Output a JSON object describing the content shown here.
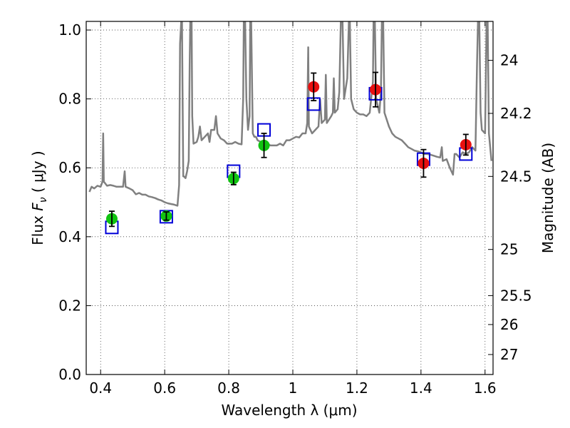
{
  "chart_data": {
    "type": "scatter",
    "xlabel": "Wavelength  λ (μm)",
    "ylabel": "Flux  F_ν  ( μJy )",
    "ylabel_parts": {
      "pre": "Flux  ",
      "var": "F",
      "sub": "ν",
      "post": "  ( μJy )"
    },
    "y2label": "Magnitude (AB)",
    "xlim": [
      0.355,
      1.625
    ],
    "ylim": [
      0.0,
      1.025
    ],
    "x_ticks": [
      {
        "value": 0.4,
        "label": "0.4"
      },
      {
        "value": 0.6,
        "label": "0.6"
      },
      {
        "value": 0.8,
        "label": "0.8"
      },
      {
        "value": 1.0,
        "label": "1"
      },
      {
        "value": 1.2,
        "label": "1.2"
      },
      {
        "value": 1.4,
        "label": "1.4"
      },
      {
        "value": 1.6,
        "label": "1.6"
      }
    ],
    "y_ticks": [
      {
        "value": 0.0,
        "label": "0.0"
      },
      {
        "value": 0.2,
        "label": "0.2"
      },
      {
        "value": 0.4,
        "label": "0.4"
      },
      {
        "value": 0.6,
        "label": "0.6"
      },
      {
        "value": 0.8,
        "label": "0.8"
      },
      {
        "value": 1.0,
        "label": "1.0"
      }
    ],
    "y2_ticks": [
      {
        "flux": 0.912,
        "label": "24"
      },
      {
        "flux": 0.758,
        "label": "24.2"
      },
      {
        "flux": 0.575,
        "label": "24.5"
      },
      {
        "flux": 0.363,
        "label": "25"
      },
      {
        "flux": 0.229,
        "label": "25.5"
      },
      {
        "flux": 0.145,
        "label": "26"
      },
      {
        "flux": 0.058,
        "label": "27"
      }
    ],
    "grid": true,
    "series": [
      {
        "kind": "spectrum",
        "color": "#808080",
        "points": [
          [
            0.365,
            0.53
          ],
          [
            0.372,
            0.545
          ],
          [
            0.38,
            0.54
          ],
          [
            0.39,
            0.548
          ],
          [
            0.4,
            0.545
          ],
          [
            0.406,
            0.56
          ],
          [
            0.408,
            0.7
          ],
          [
            0.41,
            0.56
          ],
          [
            0.42,
            0.548
          ],
          [
            0.43,
            0.55
          ],
          [
            0.44,
            0.548
          ],
          [
            0.45,
            0.545
          ],
          [
            0.46,
            0.545
          ],
          [
            0.47,
            0.545
          ],
          [
            0.475,
            0.59
          ],
          [
            0.478,
            0.545
          ],
          [
            0.49,
            0.54
          ],
          [
            0.5,
            0.535
          ],
          [
            0.51,
            0.523
          ],
          [
            0.52,
            0.527
          ],
          [
            0.53,
            0.522
          ],
          [
            0.54,
            0.522
          ],
          [
            0.55,
            0.517
          ],
          [
            0.56,
            0.515
          ],
          [
            0.57,
            0.512
          ],
          [
            0.58,
            0.508
          ],
          [
            0.59,
            0.505
          ],
          [
            0.6,
            0.5
          ],
          [
            0.61,
            0.497
          ],
          [
            0.62,
            0.495
          ],
          [
            0.63,
            0.493
          ],
          [
            0.64,
            0.49
          ],
          [
            0.645,
            0.55
          ],
          [
            0.648,
            0.96
          ],
          [
            0.652,
            1.03
          ],
          [
            0.654,
            1.03
          ],
          [
            0.656,
            0.8
          ],
          [
            0.658,
            0.575
          ],
          [
            0.66,
            0.575
          ],
          [
            0.665,
            0.57
          ],
          [
            0.67,
            0.59
          ],
          [
            0.675,
            0.62
          ],
          [
            0.678,
            0.9
          ],
          [
            0.68,
            1.03
          ],
          [
            0.684,
            1.03
          ],
          [
            0.686,
            0.75
          ],
          [
            0.69,
            0.67
          ],
          [
            0.7,
            0.675
          ],
          [
            0.705,
            0.69
          ],
          [
            0.71,
            0.72
          ],
          [
            0.715,
            0.68
          ],
          [
            0.725,
            0.69
          ],
          [
            0.735,
            0.7
          ],
          [
            0.74,
            0.675
          ],
          [
            0.745,
            0.71
          ],
          [
            0.755,
            0.71
          ],
          [
            0.76,
            0.75
          ],
          [
            0.765,
            0.7
          ],
          [
            0.775,
            0.685
          ],
          [
            0.785,
            0.68
          ],
          [
            0.795,
            0.67
          ],
          [
            0.8,
            0.67
          ],
          [
            0.81,
            0.67
          ],
          [
            0.82,
            0.675
          ],
          [
            0.83,
            0.67
          ],
          [
            0.84,
            0.668
          ],
          [
            0.845,
            0.8
          ],
          [
            0.847,
            1.03
          ],
          [
            0.851,
            1.03
          ],
          [
            0.855,
            0.8
          ],
          [
            0.86,
            0.71
          ],
          [
            0.865,
            0.75
          ],
          [
            0.867,
            1.03
          ],
          [
            0.87,
            1.03
          ],
          [
            0.872,
            0.9
          ],
          [
            0.875,
            0.7
          ],
          [
            0.88,
            0.69
          ],
          [
            0.885,
            0.69
          ],
          [
            0.89,
            0.68
          ],
          [
            0.9,
            0.675
          ],
          [
            0.91,
            0.67
          ],
          [
            0.92,
            0.67
          ],
          [
            0.93,
            0.665
          ],
          [
            0.95,
            0.665
          ],
          [
            0.96,
            0.67
          ],
          [
            0.97,
            0.665
          ],
          [
            0.98,
            0.68
          ],
          [
            0.99,
            0.68
          ],
          [
            1.0,
            0.685
          ],
          [
            1.01,
            0.69
          ],
          [
            1.02,
            0.688
          ],
          [
            1.03,
            0.7
          ],
          [
            1.04,
            0.7
          ],
          [
            1.045,
            0.73
          ],
          [
            1.048,
            0.95
          ],
          [
            1.05,
            0.72
          ],
          [
            1.06,
            0.7
          ],
          [
            1.07,
            0.71
          ],
          [
            1.08,
            0.72
          ],
          [
            1.085,
            0.8
          ],
          [
            1.09,
            0.73
          ],
          [
            1.1,
            0.74
          ],
          [
            1.103,
            0.87
          ],
          [
            1.106,
            0.73
          ],
          [
            1.12,
            0.75
          ],
          [
            1.125,
            0.76
          ],
          [
            1.128,
            0.86
          ],
          [
            1.131,
            0.76
          ],
          [
            1.14,
            0.77
          ],
          [
            1.145,
            0.82
          ],
          [
            1.15,
            1.03
          ],
          [
            1.155,
            1.03
          ],
          [
            1.16,
            0.8
          ],
          [
            1.17,
            0.86
          ],
          [
            1.175,
            1.03
          ],
          [
            1.178,
            1.03
          ],
          [
            1.182,
            0.8
          ],
          [
            1.19,
            0.77
          ],
          [
            1.2,
            0.76
          ],
          [
            1.21,
            0.755
          ],
          [
            1.22,
            0.755
          ],
          [
            1.23,
            0.75
          ],
          [
            1.24,
            0.76
          ],
          [
            1.25,
            0.85
          ],
          [
            1.252,
            1.03
          ],
          [
            1.256,
            1.03
          ],
          [
            1.26,
            0.8
          ],
          [
            1.27,
            0.76
          ],
          [
            1.275,
            0.82
          ],
          [
            1.278,
            1.03
          ],
          [
            1.282,
            1.03
          ],
          [
            1.286,
            0.76
          ],
          [
            1.3,
            0.72
          ],
          [
            1.31,
            0.7
          ],
          [
            1.32,
            0.69
          ],
          [
            1.33,
            0.685
          ],
          [
            1.34,
            0.68
          ],
          [
            1.35,
            0.67
          ],
          [
            1.36,
            0.66
          ],
          [
            1.37,
            0.655
          ],
          [
            1.38,
            0.65
          ],
          [
            1.39,
            0.648
          ],
          [
            1.4,
            0.645
          ],
          [
            1.41,
            0.64
          ],
          [
            1.42,
            0.64
          ],
          [
            1.43,
            0.638
          ],
          [
            1.44,
            0.635
          ],
          [
            1.45,
            0.632
          ],
          [
            1.46,
            0.63
          ],
          [
            1.465,
            0.66
          ],
          [
            1.468,
            0.62
          ],
          [
            1.48,
            0.625
          ],
          [
            1.49,
            0.6
          ],
          [
            1.5,
            0.58
          ],
          [
            1.505,
            0.64
          ],
          [
            1.51,
            0.64
          ],
          [
            1.52,
            0.63
          ],
          [
            1.53,
            0.645
          ],
          [
            1.54,
            0.64
          ],
          [
            1.55,
            0.645
          ],
          [
            1.56,
            0.66
          ],
          [
            1.57,
            0.65
          ],
          [
            1.575,
            0.9
          ],
          [
            1.578,
            1.03
          ],
          [
            1.582,
            1.03
          ],
          [
            1.586,
            0.76
          ],
          [
            1.59,
            0.71
          ],
          [
            1.6,
            0.7
          ],
          [
            1.605,
            1.03
          ],
          [
            1.608,
            1.03
          ],
          [
            1.612,
            0.7
          ],
          [
            1.62,
            0.62
          ]
        ]
      },
      {
        "kind": "model-boxes",
        "color": "#0000d8",
        "points": [
          [
            0.435,
            0.427
          ],
          [
            0.605,
            0.458
          ],
          [
            0.815,
            0.59
          ],
          [
            0.91,
            0.71
          ],
          [
            1.065,
            0.785
          ],
          [
            1.258,
            0.815
          ],
          [
            1.408,
            0.625
          ],
          [
            1.54,
            0.64
          ]
        ]
      },
      {
        "kind": "observed",
        "name": "green",
        "color": "#11c411",
        "points": [
          {
            "x": 0.435,
            "y": 0.452,
            "err": 0.022
          },
          {
            "x": 0.605,
            "y": 0.46,
            "err": 0.012
          },
          {
            "x": 0.815,
            "y": 0.569,
            "err": 0.018
          },
          {
            "x": 0.91,
            "y": 0.665,
            "err": 0.035
          }
        ]
      },
      {
        "kind": "observed",
        "name": "red",
        "color": "#e81010",
        "points": [
          {
            "x": 1.065,
            "y": 0.835,
            "err": 0.04
          },
          {
            "x": 1.258,
            "y": 0.827,
            "err": 0.05
          },
          {
            "x": 1.408,
            "y": 0.613,
            "err": 0.04
          },
          {
            "x": 1.54,
            "y": 0.667,
            "err": 0.03
          }
        ]
      }
    ]
  }
}
